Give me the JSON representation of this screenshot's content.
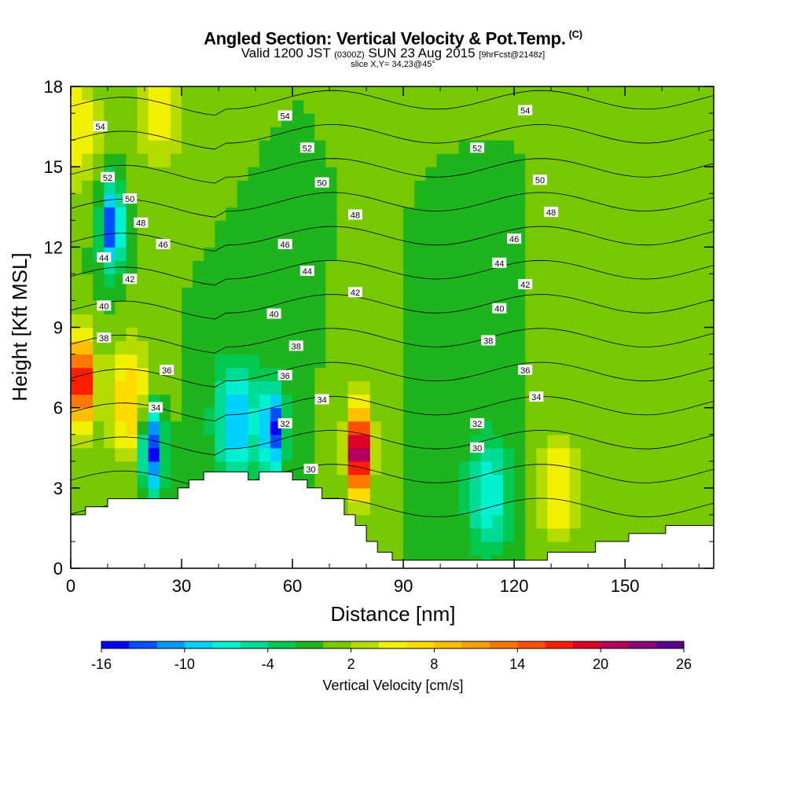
{
  "header": {
    "title": "Angled Section: Vertical Velocity & Pot.Temp.",
    "title_unit": "(C)",
    "valid_prefix": "Valid 1200 JST",
    "valid_zulu": "(0300Z)",
    "valid_date": "SUN 23 Aug 2015",
    "forecast": "[9hrFcst@2148z]",
    "slice": "slice X,Y= 34,23@45°"
  },
  "chart_data": {
    "type": "heatmap",
    "xlabel": "Distance [nm]",
    "ylabel": "Height [Kft MSL]",
    "xlim": [
      0,
      174
    ],
    "ylim": [
      0,
      18
    ],
    "x_ticks": [
      0,
      30,
      60,
      90,
      120,
      150
    ],
    "y_ticks": [
      0,
      3,
      6,
      9,
      12,
      15,
      18
    ],
    "colorbar": {
      "label": "Vertical Velocity [cm/s]",
      "min": -16,
      "max": 26,
      "step": 2,
      "tick_labels": [
        "-16",
        "-10",
        "-4",
        "2",
        "8",
        "14",
        "20",
        "26"
      ],
      "colors": [
        "#0000ff",
        "#0050ff",
        "#0096ff",
        "#00d2ff",
        "#00f0d2",
        "#00dc96",
        "#00c850",
        "#1eb41e",
        "#78c800",
        "#b4dc00",
        "#f0f000",
        "#ffdc00",
        "#ffbe00",
        "#ffa000",
        "#ff7800",
        "#ff5000",
        "#ff1e00",
        "#dc0028",
        "#b4005a",
        "#8c0078",
        "#5a008c"
      ]
    },
    "terrain_kft": [
      [
        0,
        2.0
      ],
      [
        4,
        2.0
      ],
      [
        4,
        2.3
      ],
      [
        10,
        2.3
      ],
      [
        10,
        2.6
      ],
      [
        29,
        2.6
      ],
      [
        29,
        3.0
      ],
      [
        32,
        3.0
      ],
      [
        32,
        3.3
      ],
      [
        36,
        3.3
      ],
      [
        36,
        3.6
      ],
      [
        48,
        3.6
      ],
      [
        48,
        3.3
      ],
      [
        51,
        3.3
      ],
      [
        51,
        3.6
      ],
      [
        60,
        3.6
      ],
      [
        60,
        3.3
      ],
      [
        64,
        3.3
      ],
      [
        64,
        3.0
      ],
      [
        68,
        3.0
      ],
      [
        68,
        2.6
      ],
      [
        74,
        2.6
      ],
      [
        74,
        2.0
      ],
      [
        77,
        2.0
      ],
      [
        77,
        1.6
      ],
      [
        80,
        1.6
      ],
      [
        80,
        1.0
      ],
      [
        83,
        1.0
      ],
      [
        83,
        0.6
      ],
      [
        87,
        0.6
      ],
      [
        87,
        0.3
      ],
      [
        97,
        0.3
      ],
      [
        97,
        0.3
      ],
      [
        129,
        0.3
      ],
      [
        129,
        0.6
      ],
      [
        142,
        0.6
      ],
      [
        142,
        1.0
      ],
      [
        151,
        1.0
      ],
      [
        151,
        1.3
      ],
      [
        161,
        1.3
      ],
      [
        161,
        1.6
      ],
      [
        174,
        1.6
      ]
    ],
    "w_centers": [
      {
        "x": 3,
        "z": 7.0,
        "w": 22
      },
      {
        "x": 22,
        "z": 4.5,
        "w": -16
      },
      {
        "x": 11,
        "z": 12.8,
        "w": -14
      },
      {
        "x": 78,
        "z": 4.4,
        "w": 26
      },
      {
        "x": 55,
        "z": 5.2,
        "w": -14
      },
      {
        "x": 45,
        "z": 5.5,
        "w": -10
      },
      {
        "x": 132,
        "z": 3.0,
        "w": 6
      },
      {
        "x": 113,
        "z": 2.8,
        "w": -8
      },
      {
        "x": 16,
        "z": 6.2,
        "w": 8
      },
      {
        "x": 2,
        "z": 16.5,
        "w": 6
      },
      {
        "x": 24,
        "z": 17.2,
        "w": 6
      }
    ],
    "theta_levels": [
      30,
      32,
      34,
      36,
      38,
      40,
      42,
      44,
      46,
      48,
      50,
      52,
      54
    ],
    "contour_labels": [
      {
        "text": "54",
        "x": 8,
        "z": 16.5
      },
      {
        "text": "52",
        "x": 10,
        "z": 14.6
      },
      {
        "text": "50",
        "x": 16,
        "z": 13.8
      },
      {
        "text": "48",
        "x": 19,
        "z": 12.9
      },
      {
        "text": "46",
        "x": 25,
        "z": 12.1
      },
      {
        "text": "44",
        "x": 9,
        "z": 11.6
      },
      {
        "text": "42",
        "x": 16,
        "z": 10.8
      },
      {
        "text": "40",
        "x": 9,
        "z": 9.8
      },
      {
        "text": "38",
        "x": 9,
        "z": 8.6
      },
      {
        "text": "36",
        "x": 26,
        "z": 7.4
      },
      {
        "text": "34",
        "x": 23,
        "z": 6.0
      },
      {
        "text": "54",
        "x": 58,
        "z": 16.9
      },
      {
        "text": "52",
        "x": 64,
        "z": 15.7
      },
      {
        "text": "50",
        "x": 68,
        "z": 14.4
      },
      {
        "text": "48",
        "x": 77,
        "z": 13.2
      },
      {
        "text": "46",
        "x": 58,
        "z": 12.1
      },
      {
        "text": "44",
        "x": 64,
        "z": 11.1
      },
      {
        "text": "42",
        "x": 77,
        "z": 10.3
      },
      {
        "text": "40",
        "x": 55,
        "z": 9.5
      },
      {
        "text": "38",
        "x": 61,
        "z": 8.3
      },
      {
        "text": "36",
        "x": 58,
        "z": 7.2
      },
      {
        "text": "34",
        "x": 68,
        "z": 6.3
      },
      {
        "text": "32",
        "x": 58,
        "z": 5.4
      },
      {
        "text": "30",
        "x": 65,
        "z": 3.7
      },
      {
        "text": "54",
        "x": 123,
        "z": 17.1
      },
      {
        "text": "52",
        "x": 110,
        "z": 15.7
      },
      {
        "text": "50",
        "x": 127,
        "z": 14.5
      },
      {
        "text": "48",
        "x": 130,
        "z": 13.3
      },
      {
        "text": "46",
        "x": 120,
        "z": 12.3
      },
      {
        "text": "44",
        "x": 116,
        "z": 11.4
      },
      {
        "text": "42",
        "x": 123,
        "z": 10.6
      },
      {
        "text": "40",
        "x": 116,
        "z": 9.7
      },
      {
        "text": "38",
        "x": 113,
        "z": 8.5
      },
      {
        "text": "36",
        "x": 123,
        "z": 7.4
      },
      {
        "text": "34",
        "x": 126,
        "z": 6.4
      },
      {
        "text": "32",
        "x": 110,
        "z": 5.4
      },
      {
        "text": "30",
        "x": 110,
        "z": 4.5
      }
    ]
  }
}
